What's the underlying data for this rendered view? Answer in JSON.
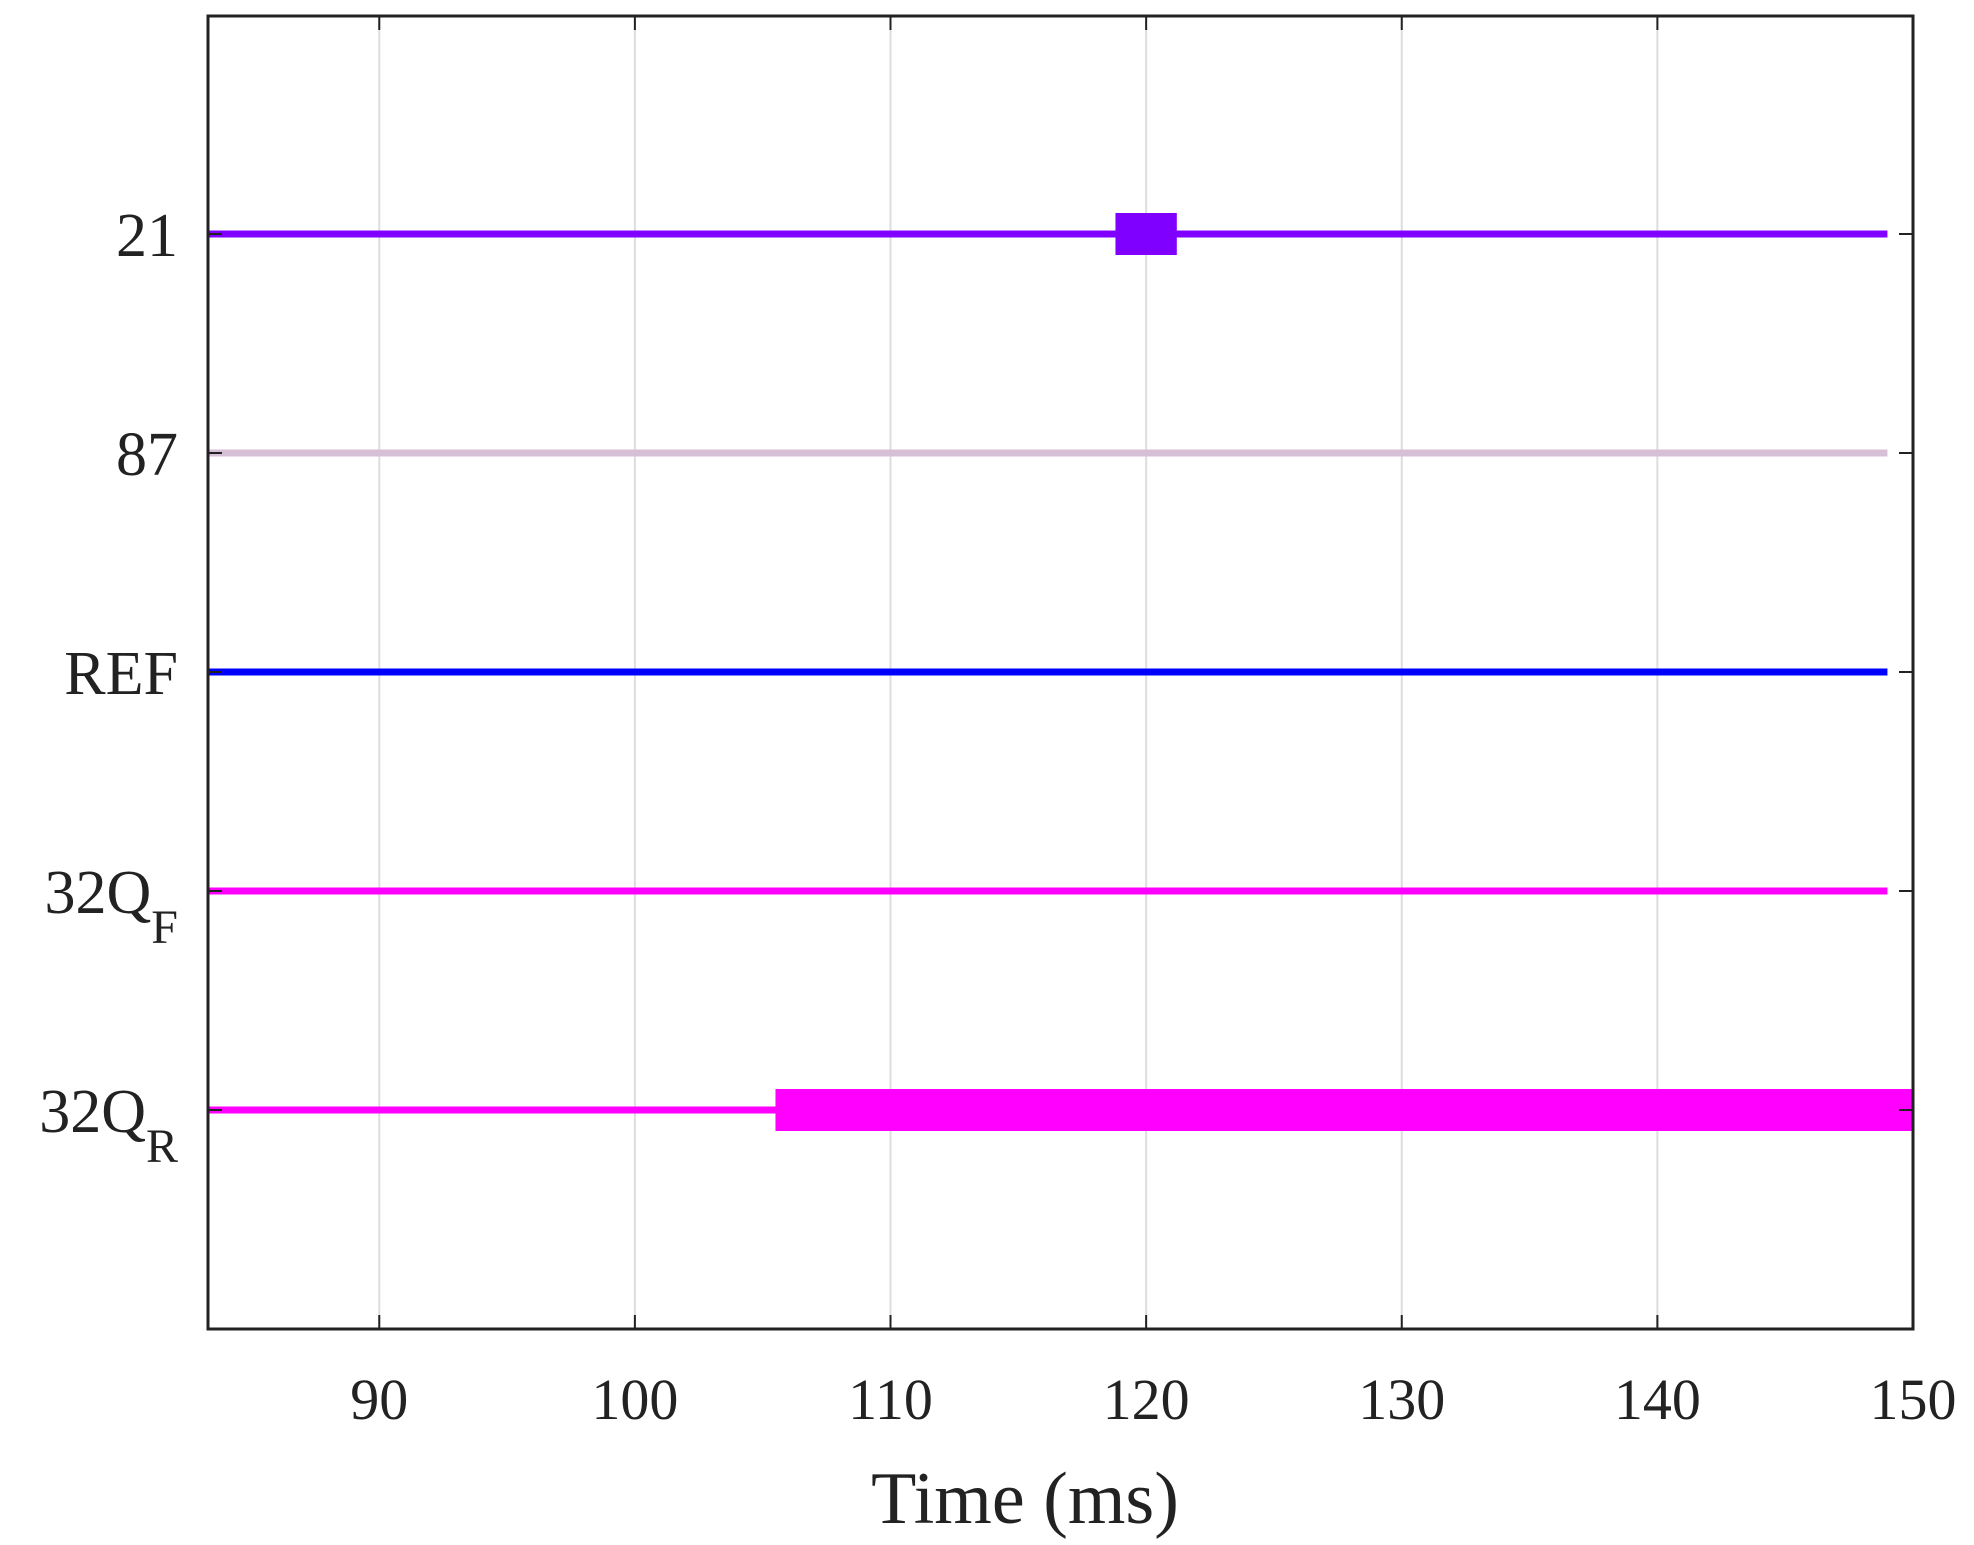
{
  "chart_data": {
    "type": "timeline",
    "xlabel": "Time (ms)",
    "xlim": [
      83.3,
      150
    ],
    "xticks": [
      90,
      100,
      110,
      120,
      130,
      140,
      150
    ],
    "grid": "vertical",
    "rows": [
      {
        "label": "21",
        "subscript": "",
        "color": "#7F00FF",
        "line_end": 149,
        "active_intervals": [
          [
            118.8,
            121.2
          ]
        ]
      },
      {
        "label": "87",
        "subscript": "",
        "color": "#D8BFD8",
        "line_end": 149,
        "active_intervals": []
      },
      {
        "label": "REF",
        "subscript": "",
        "color": "#0000FF",
        "line_end": 149,
        "active_intervals": []
      },
      {
        "label": "32Q",
        "subscript": "F",
        "color": "#FF00FF",
        "line_end": 149,
        "active_intervals": []
      },
      {
        "label": "32Q",
        "subscript": "R",
        "color": "#FF00FF",
        "line_end": 150,
        "active_intervals": [
          [
            105.5,
            150
          ]
        ]
      }
    ]
  }
}
